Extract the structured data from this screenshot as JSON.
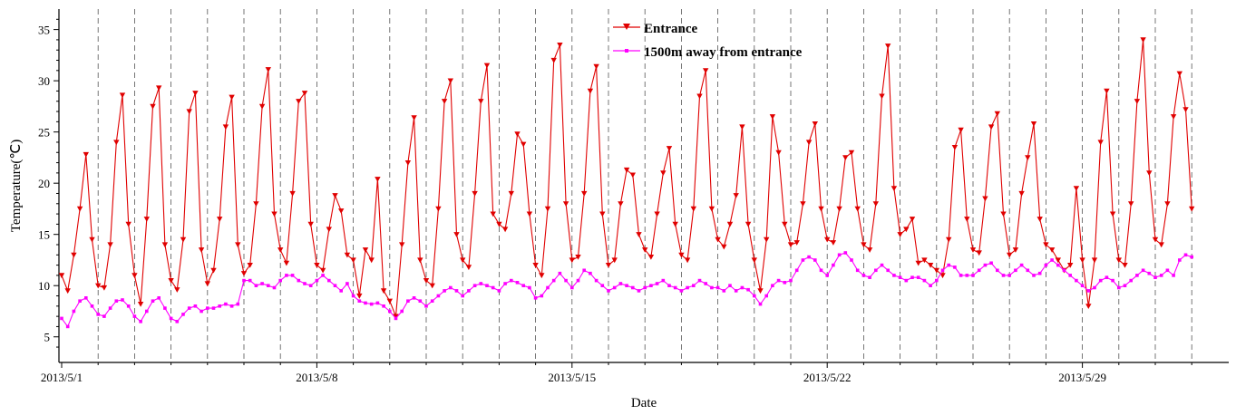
{
  "chart_data": {
    "type": "line",
    "title": "",
    "xlabel": "Date",
    "ylabel": "Temperature(℃)",
    "x_start": "2013/5/1",
    "x_end": "2013/6/1",
    "x_ticks": [
      "2013/5/1",
      "2013/5/8",
      "2013/5/15",
      "2013/5/22",
      "2013/5/29"
    ],
    "y_ticks": [
      5,
      10,
      15,
      20,
      25,
      30,
      35
    ],
    "ylim": [
      2.5,
      37
    ],
    "grid": "vertical dashed at each day",
    "legend_position": "top-center",
    "series": [
      {
        "name": "Entrance",
        "color": "#e00000",
        "marker": "triangle-down",
        "points_per_day": 6,
        "values": [
          11.0,
          9.5,
          13.0,
          17.5,
          22.8,
          14.5,
          10.0,
          9.8,
          14.0,
          24.0,
          28.6,
          16.0,
          11.0,
          8.2,
          16.5,
          27.5,
          29.3,
          14.0,
          10.5,
          9.6,
          14.5,
          27.0,
          28.8,
          13.5,
          10.2,
          11.5,
          16.5,
          25.5,
          28.4,
          14.0,
          11.2,
          12.0,
          18.0,
          27.5,
          31.1,
          17.0,
          13.5,
          12.2,
          19.0,
          28.0,
          28.8,
          16.0,
          12.0,
          11.5,
          15.5,
          18.8,
          17.3,
          13.0,
          12.5,
          9.0,
          13.5,
          12.5,
          20.4,
          9.5,
          8.5,
          7.0,
          14.0,
          22.0,
          26.4,
          12.5,
          10.5,
          10.0,
          17.5,
          28.0,
          30.0,
          15.0,
          12.5,
          11.8,
          19.0,
          28.0,
          31.5,
          17.0,
          16.0,
          15.5,
          19.0,
          24.8,
          23.8,
          17.0,
          12.0,
          11.0,
          17.5,
          32.0,
          33.5,
          18.0,
          12.5,
          12.8,
          19.0,
          29.0,
          31.4,
          17.0,
          12.0,
          12.5,
          18.0,
          21.3,
          20.8,
          15.0,
          13.5,
          12.8,
          17.0,
          21.0,
          23.4,
          16.0,
          13.0,
          12.5,
          17.5,
          28.5,
          31.0,
          17.5,
          14.5,
          13.8,
          16.0,
          18.8,
          25.5,
          16.0,
          12.5,
          9.5,
          14.5,
          26.5,
          23.0,
          16.0,
          14.0,
          14.2,
          18.0,
          24.0,
          25.8,
          17.5,
          14.5,
          14.2,
          17.5,
          22.5,
          23.0,
          17.5,
          14.0,
          13.5,
          18.0,
          28.5,
          33.4,
          19.5,
          15.0,
          15.5,
          16.5,
          12.2,
          12.5,
          12.0,
          11.5,
          11.0,
          14.5,
          23.5,
          25.2,
          16.5,
          13.5,
          13.2,
          18.5,
          25.5,
          26.8,
          17.0,
          13.0,
          13.5,
          19.0,
          22.5,
          25.8,
          16.5,
          14.0,
          13.5,
          12.5,
          11.5,
          12.0,
          19.5,
          12.5,
          8.0,
          12.5,
          24.0,
          29.0,
          17.0,
          12.5,
          12.0,
          18.0,
          28.0,
          34.0,
          21.0,
          14.5,
          14.0,
          18.0,
          26.5,
          30.7,
          27.2,
          17.5
        ]
      },
      {
        "name": "1500m away from entrance",
        "color": "#ff00ff",
        "marker": "square",
        "points_per_day": 6,
        "values": [
          6.8,
          6.0,
          7.5,
          8.5,
          8.8,
          8.0,
          7.2,
          7.0,
          7.8,
          8.5,
          8.6,
          8.0,
          7.0,
          6.5,
          7.5,
          8.5,
          8.8,
          7.8,
          6.8,
          6.5,
          7.2,
          7.8,
          8.0,
          7.5,
          7.8,
          7.8,
          8.0,
          8.2,
          8.0,
          8.2,
          10.5,
          10.5,
          10.0,
          10.2,
          10.0,
          9.8,
          10.5,
          11.0,
          11.0,
          10.5,
          10.2,
          10.0,
          10.5,
          11.0,
          10.5,
          10.0,
          9.5,
          10.2,
          9.0,
          8.5,
          8.3,
          8.2,
          8.3,
          8.0,
          7.5,
          6.8,
          7.5,
          8.5,
          8.8,
          8.5,
          8.0,
          8.5,
          9.0,
          9.5,
          9.8,
          9.5,
          9.0,
          9.5,
          10.0,
          10.2,
          10.0,
          9.8,
          9.5,
          10.2,
          10.5,
          10.3,
          10.0,
          9.8,
          8.8,
          9.0,
          9.8,
          10.5,
          11.2,
          10.5,
          9.8,
          10.5,
          11.5,
          11.2,
          10.5,
          10.0,
          9.5,
          9.8,
          10.2,
          10.0,
          9.8,
          9.5,
          9.8,
          10.0,
          10.2,
          10.5,
          10.0,
          9.8,
          9.5,
          9.8,
          10.0,
          10.5,
          10.2,
          9.8,
          9.8,
          9.5,
          10.0,
          9.5,
          9.8,
          9.6,
          9.0,
          8.2,
          9.0,
          10.0,
          10.5,
          10.3,
          10.5,
          11.5,
          12.5,
          12.8,
          12.5,
          11.5,
          11.0,
          12.0,
          13.0,
          13.2,
          12.5,
          11.5,
          11.0,
          10.8,
          11.5,
          12.0,
          11.5,
          11.0,
          10.8,
          10.5,
          10.8,
          10.8,
          10.5,
          10.0,
          10.5,
          11.5,
          12.0,
          11.8,
          11.0,
          11.0,
          11.0,
          11.5,
          12.0,
          12.2,
          11.5,
          11.0,
          11.0,
          11.5,
          12.0,
          11.5,
          11.0,
          11.2,
          12.0,
          12.5,
          12.0,
          11.5,
          11.0,
          10.5,
          10.0,
          9.5,
          9.8,
          10.5,
          10.8,
          10.5,
          9.8,
          10.0,
          10.5,
          11.0,
          11.5,
          11.2,
          10.8,
          11.0,
          11.5,
          11.0,
          12.5,
          13.0,
          12.8
        ]
      }
    ]
  }
}
